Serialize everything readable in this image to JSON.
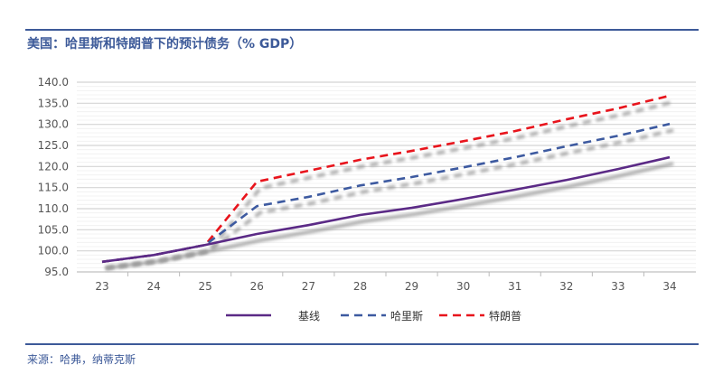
{
  "title": "美国：哈里斯和特朗普下的预计债务（% GDP）",
  "source": "来源：哈弗，纳蒂克斯",
  "chart_data": {
    "type": "line",
    "title": "美国：哈里斯和特朗普下的预计债务（% GDP）",
    "x": [
      "23",
      "24",
      "25",
      "26",
      "27",
      "28",
      "29",
      "30",
      "31",
      "32",
      "33",
      "34"
    ],
    "ylim": [
      95,
      140
    ],
    "yticks": [
      "95.0",
      "100.0",
      "105.0",
      "110.0",
      "115.0",
      "120.0",
      "125.0",
      "130.0",
      "135.0",
      "140.0"
    ],
    "grid": true,
    "legend": "bottom",
    "series": [
      {
        "name": "基线",
        "color": "#5b2a86",
        "dash": false,
        "values": [
          97.4,
          99.0,
          101.4,
          104.0,
          106.1,
          108.5,
          110.2,
          112.3,
          114.5,
          116.8,
          119.4,
          122.2
        ]
      },
      {
        "name": "哈里斯",
        "color": "#3d5aa0",
        "dash": true,
        "values": [
          97.4,
          99.0,
          101.4,
          110.6,
          112.8,
          115.5,
          117.5,
          119.8,
          122.2,
          124.8,
          127.3,
          130.1
        ]
      },
      {
        "name": "特朗普",
        "color": "#e8141c",
        "dash": true,
        "values": [
          97.4,
          99.0,
          101.4,
          116.4,
          119.0,
          121.6,
          123.7,
          126.0,
          128.4,
          131.2,
          133.8,
          136.8
        ]
      }
    ]
  }
}
